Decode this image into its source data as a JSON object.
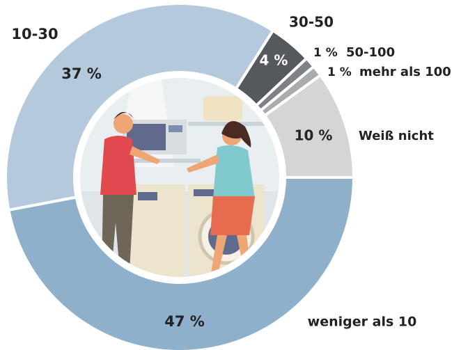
{
  "chart_data": {
    "type": "pie",
    "categories": [
      "30-50",
      "50-100",
      "mehr als 100",
      "Weiß nicht",
      "weniger als 10",
      "10-30"
    ],
    "values": [
      4,
      1,
      1,
      10,
      47,
      37
    ],
    "value_labels": [
      "4 %",
      "1 %",
      "1 %",
      "10 %",
      "47 %",
      "37 %"
    ],
    "colors": [
      "#55595d",
      "#7e8185",
      "#a9abad",
      "#d4d5d6",
      "#8fb0ca",
      "#b4c9dc"
    ]
  }
}
